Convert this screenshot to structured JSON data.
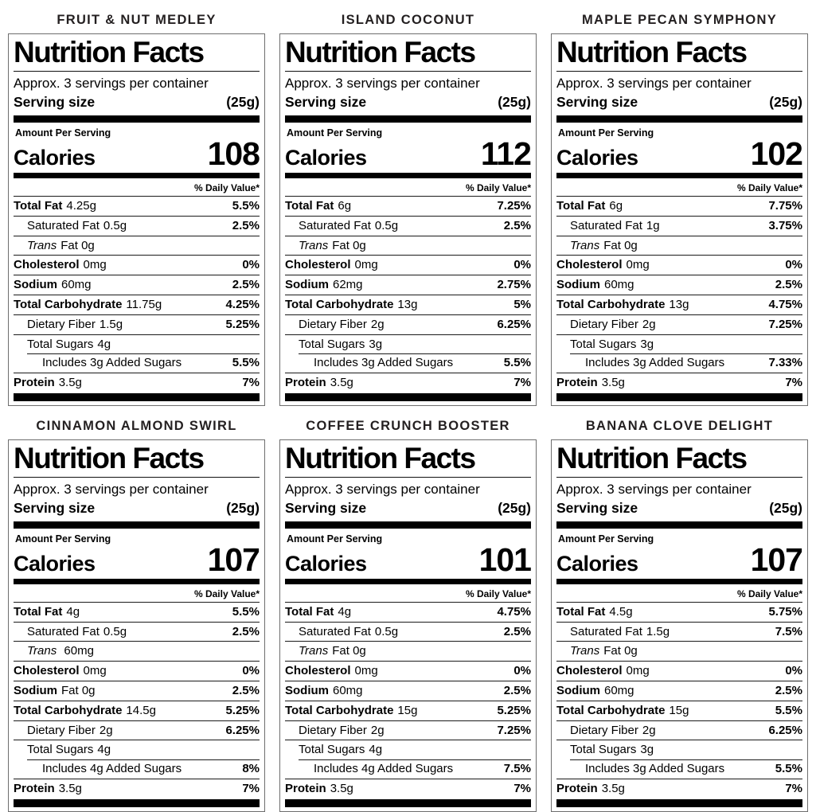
{
  "common": {
    "nf_title": "Nutrition Facts",
    "servings_line": "Approx. 3 servings per container",
    "serving_size_label": "Serving size",
    "serving_size_value": "(25g)",
    "amount_per_serving": "Amount Per Serving",
    "calories_label": "Calories",
    "daily_value_header": "% Daily Value*"
  },
  "colors": {
    "text": "#000000",
    "flavor_title_text": "#231f20",
    "label_border": "#6e6e6e",
    "bar": "#000000",
    "background": "#ffffff"
  },
  "labels": [
    {
      "title": "FRUIT & NUT MEDLEY",
      "calories": "108",
      "rows": [
        {
          "name": "Total Fat",
          "amount": "4.25g",
          "dv": "5.5%",
          "style": "main"
        },
        {
          "name": "Saturated Fat",
          "amount": "0.5g",
          "dv": "2.5%",
          "style": "ind1"
        },
        {
          "name": "Trans",
          "amount": "Fat 0g",
          "dv": "",
          "style": "italic"
        },
        {
          "name": "Cholesterol",
          "amount": "0mg",
          "dv": "0%",
          "style": "main"
        },
        {
          "name": "Sodium",
          "amount": "60mg",
          "dv": "2.5%",
          "style": "main"
        },
        {
          "name": "Total Carbohydrate",
          "amount": "11.75g",
          "dv": "4.25%",
          "style": "main"
        },
        {
          "name": "Dietary Fiber",
          "amount": "1.5g",
          "dv": "5.25%",
          "style": "ind1"
        },
        {
          "name": "Total Sugars",
          "amount": "4g",
          "dv": "",
          "style": "ind1"
        },
        {
          "name": "Includes 3g Added Sugars",
          "amount": "",
          "dv": "5.5%",
          "style": "ind2"
        },
        {
          "name": "Protein",
          "amount": "3.5g",
          "dv": "7%",
          "style": "main"
        }
      ]
    },
    {
      "title": "ISLAND COCONUT",
      "calories": "112",
      "rows": [
        {
          "name": "Total Fat",
          "amount": "6g",
          "dv": "7.25%",
          "style": "main"
        },
        {
          "name": "Saturated Fat",
          "amount": "0.5g",
          "dv": "2.5%",
          "style": "ind1"
        },
        {
          "name": "Trans",
          "amount": "Fat 0g",
          "dv": "",
          "style": "italic"
        },
        {
          "name": "Cholesterol",
          "amount": "0mg",
          "dv": "0%",
          "style": "main"
        },
        {
          "name": "Sodium",
          "amount": "62mg",
          "dv": "2.75%",
          "style": "main"
        },
        {
          "name": "Total Carbohydrate",
          "amount": "13g",
          "dv": "5%",
          "style": "main"
        },
        {
          "name": "Dietary Fiber",
          "amount": "2g",
          "dv": "6.25%",
          "style": "ind1"
        },
        {
          "name": "Total Sugars",
          "amount": "3g",
          "dv": "",
          "style": "ind1"
        },
        {
          "name": "Includes 3g Added Sugars",
          "amount": "",
          "dv": "5.5%",
          "style": "ind2"
        },
        {
          "name": "Protein",
          "amount": "3.5g",
          "dv": "7%",
          "style": "main"
        }
      ]
    },
    {
      "title": "MAPLE PECAN SYMPHONY",
      "calories": "102",
      "rows": [
        {
          "name": "Total Fat",
          "amount": "6g",
          "dv": "7.75%",
          "style": "main"
        },
        {
          "name": "Saturated Fat",
          "amount": "1g",
          "dv": "3.75%",
          "style": "ind1"
        },
        {
          "name": "Trans",
          "amount": "Fat 0g",
          "dv": "",
          "style": "italic"
        },
        {
          "name": "Cholesterol",
          "amount": "0mg",
          "dv": "0%",
          "style": "main"
        },
        {
          "name": "Sodium",
          "amount": "60mg",
          "dv": "2.5%",
          "style": "main"
        },
        {
          "name": "Total Carbohydrate",
          "amount": "13g",
          "dv": "4.75%",
          "style": "main"
        },
        {
          "name": "Dietary Fiber",
          "amount": "2g",
          "dv": "7.25%",
          "style": "ind1"
        },
        {
          "name": "Total Sugars",
          "amount": "3g",
          "dv": "",
          "style": "ind1"
        },
        {
          "name": "Includes 3g Added Sugars",
          "amount": "",
          "dv": "7.33%",
          "style": "ind2"
        },
        {
          "name": "Protein",
          "amount": "3.5g",
          "dv": "7%",
          "style": "main"
        }
      ]
    },
    {
      "title": "CINNAMON ALMOND SWIRL",
      "calories": "107",
      "rows": [
        {
          "name": "Total Fat",
          "amount": "4g",
          "dv": "5.5%",
          "style": "main"
        },
        {
          "name": "Saturated Fat",
          "amount": "0.5g",
          "dv": "2.5%",
          "style": "ind1"
        },
        {
          "name": "Trans",
          "amount": " 60mg",
          "dv": "",
          "style": "italic"
        },
        {
          "name": "Cholesterol",
          "amount": "0mg",
          "dv": "0%",
          "style": "main"
        },
        {
          "name": "Sodium",
          "amount": "Fat 0g",
          "dv": "2.5%",
          "style": "main"
        },
        {
          "name": "Total Carbohydrate",
          "amount": "14.5g",
          "dv": "5.25%",
          "style": "main"
        },
        {
          "name": "Dietary Fiber",
          "amount": "2g",
          "dv": "6.25%",
          "style": "ind1"
        },
        {
          "name": "Total Sugars",
          "amount": "4g",
          "dv": "",
          "style": "ind1"
        },
        {
          "name": "Includes 4g Added Sugars",
          "amount": "",
          "dv": "8%",
          "style": "ind2"
        },
        {
          "name": "Protein",
          "amount": "3.5g",
          "dv": "7%",
          "style": "main"
        }
      ]
    },
    {
      "title": "COFFEE CRUNCH BOOSTER",
      "calories": "101",
      "rows": [
        {
          "name": "Total Fat",
          "amount": "4g",
          "dv": "4.75%",
          "style": "main"
        },
        {
          "name": "Saturated Fat",
          "amount": "0.5g",
          "dv": "2.5%",
          "style": "ind1"
        },
        {
          "name": "Trans",
          "amount": "Fat 0g",
          "dv": "",
          "style": "italic"
        },
        {
          "name": "Cholesterol",
          "amount": "0mg",
          "dv": "0%",
          "style": "main"
        },
        {
          "name": "Sodium",
          "amount": "60mg",
          "dv": "2.5%",
          "style": "main"
        },
        {
          "name": "Total Carbohydrate",
          "amount": "15g",
          "dv": "5.25%",
          "style": "main"
        },
        {
          "name": "Dietary Fiber",
          "amount": "2g",
          "dv": "7.25%",
          "style": "ind1"
        },
        {
          "name": "Total Sugars",
          "amount": "4g",
          "dv": "",
          "style": "ind1"
        },
        {
          "name": "Includes 4g Added Sugars",
          "amount": "",
          "dv": "7.5%",
          "style": "ind2"
        },
        {
          "name": "Protein",
          "amount": "3.5g",
          "dv": "7%",
          "style": "main"
        }
      ]
    },
    {
      "title": "BANANA CLOVE DELIGHT",
      "calories": "107",
      "rows": [
        {
          "name": "Total Fat",
          "amount": "4.5g",
          "dv": "5.75%",
          "style": "main"
        },
        {
          "name": "Saturated Fat",
          "amount": "1.5g",
          "dv": "7.5%",
          "style": "ind1"
        },
        {
          "name": "Trans",
          "amount": "Fat 0g",
          "dv": "",
          "style": "italic"
        },
        {
          "name": "Cholesterol",
          "amount": "0mg",
          "dv": "0%",
          "style": "main"
        },
        {
          "name": "Sodium",
          "amount": "60mg",
          "dv": "2.5%",
          "style": "main"
        },
        {
          "name": "Total Carbohydrate",
          "amount": "15g",
          "dv": "5.5%",
          "style": "main"
        },
        {
          "name": "Dietary Fiber",
          "amount": "2g",
          "dv": "6.25%",
          "style": "ind1"
        },
        {
          "name": "Total Sugars",
          "amount": "3g",
          "dv": "",
          "style": "ind1"
        },
        {
          "name": "Includes 3g Added Sugars",
          "amount": "",
          "dv": "5.5%",
          "style": "ind2"
        },
        {
          "name": "Protein",
          "amount": "3.5g",
          "dv": "7%",
          "style": "main"
        }
      ]
    }
  ]
}
